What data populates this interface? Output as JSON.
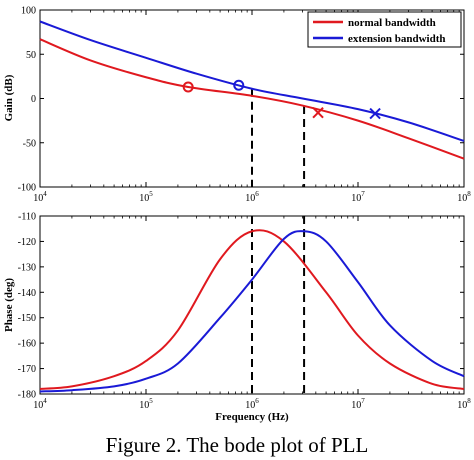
{
  "caption": "Figure 2. The bode plot of PLL",
  "colors": {
    "normal": "#e0191f",
    "extension": "#1a1ad6",
    "marker_line": "#000000"
  },
  "chart_data": [
    {
      "type": "line",
      "xscale": "log",
      "xlim": [
        10000,
        100000000
      ],
      "ylim": [
        -100,
        100
      ],
      "ylabel": "Gain (dB)",
      "xlabel": "",
      "grid": false,
      "legend_placement": "top-right",
      "y_ticks": [
        100,
        50,
        0,
        -50,
        -100
      ],
      "x_ticks": [
        {
          "base": "10",
          "exp": "4",
          "value": 10000
        },
        {
          "base": "10",
          "exp": "5",
          "value": 100000
        },
        {
          "base": "10",
          "exp": "6",
          "value": 1000000
        },
        {
          "base": "10",
          "exp": "7",
          "value": 10000000
        },
        {
          "base": "10",
          "exp": "8",
          "value": 100000000
        }
      ],
      "series": [
        {
          "name": "normal bandwidth",
          "color": "#e0191f",
          "x": [
            10000,
            30000,
            100000,
            250000,
            1000000,
            3000000,
            10000000,
            30000000,
            100000000
          ],
          "y": [
            67,
            43,
            24,
            13,
            3,
            -8,
            -25,
            -45,
            -68
          ],
          "markers": [
            {
              "symbol": "circle",
              "x": 250000,
              "y": 13
            },
            {
              "symbol": "cross",
              "x": 4200000,
              "y": -16
            }
          ]
        },
        {
          "name": "extension bandwidth",
          "color": "#1a1ad6",
          "x": [
            10000,
            30000,
            100000,
            300000,
            1000000,
            3000000,
            10000000,
            30000000,
            100000000
          ],
          "y": [
            87,
            66,
            46,
            28,
            11,
            0,
            -12,
            -27,
            -48
          ],
          "markers": [
            {
              "symbol": "circle",
              "x": 750000,
              "y": 15
            },
            {
              "symbol": "cross",
              "x": 14500000,
              "y": -17
            }
          ]
        }
      ],
      "vlines": [
        1000000,
        3100000
      ]
    },
    {
      "type": "line",
      "xscale": "log",
      "xlim": [
        10000,
        100000000
      ],
      "ylim": [
        -180,
        -110
      ],
      "ylabel": "Phase (deg)",
      "xlabel": "Frequency (Hz)",
      "grid": false,
      "y_ticks": [
        -110,
        -120,
        -130,
        -140,
        -150,
        -160,
        -170,
        -180
      ],
      "x_ticks": [
        {
          "base": "10",
          "exp": "4",
          "value": 10000
        },
        {
          "base": "10",
          "exp": "5",
          "value": 100000
        },
        {
          "base": "10",
          "exp": "6",
          "value": 1000000
        },
        {
          "base": "10",
          "exp": "7",
          "value": 10000000
        },
        {
          "base": "10",
          "exp": "8",
          "value": 100000000
        }
      ],
      "series": [
        {
          "name": "normal bandwidth",
          "color": "#e0191f",
          "x": [
            10000,
            20000,
            50000,
            100000,
            200000,
            500000,
            1000000,
            2000000,
            5000000,
            10000000,
            20000000,
            50000000,
            100000000
          ],
          "y": [
            -178,
            -177,
            -173,
            -167,
            -155,
            -127,
            -116,
            -120,
            -140,
            -157,
            -168,
            -176,
            -178
          ]
        },
        {
          "name": "extension bandwidth",
          "color": "#1a1ad6",
          "x": [
            10000,
            20000,
            50000,
            100000,
            200000,
            500000,
            1000000,
            2000000,
            3100000,
            5000000,
            10000000,
            20000000,
            50000000,
            100000000
          ],
          "y": [
            -179,
            -178.5,
            -177,
            -174,
            -168,
            -150,
            -135,
            -119,
            -116,
            -120,
            -136,
            -153,
            -167,
            -173
          ]
        }
      ],
      "vlines": [
        1000000,
        3100000
      ]
    }
  ]
}
